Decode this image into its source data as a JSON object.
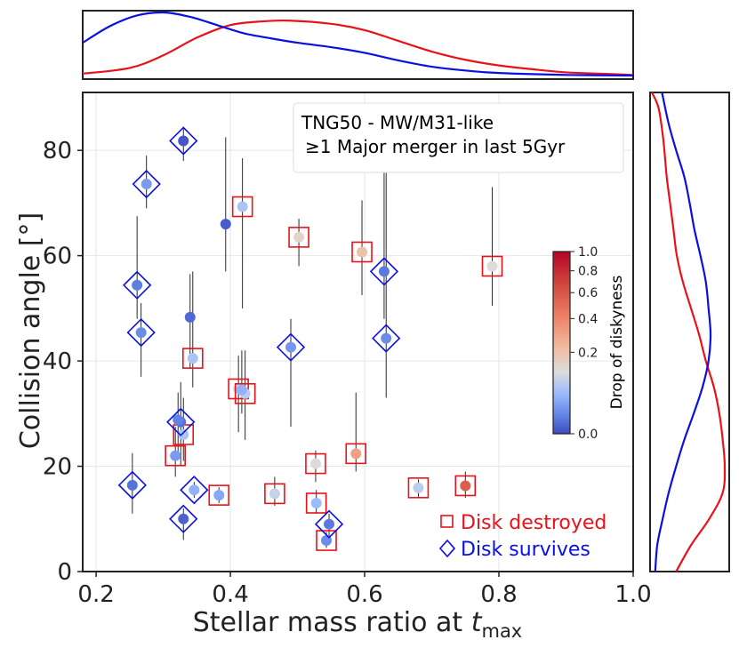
{
  "chart_data": {
    "type": "scatter",
    "title": "",
    "xlabel_main": "Stellar mass ratio at ",
    "xlabel_t": "t",
    "xlabel_sub": "max",
    "ylabel": "Collision angle [°]",
    "xlim": [
      0.18,
      1.0
    ],
    "ylim": [
      0,
      91
    ],
    "xticks": [
      0.2,
      0.4,
      0.6,
      0.8,
      1.0
    ],
    "xtick_labels": [
      "0.2",
      "0.4",
      "0.6",
      "0.8",
      "1.0"
    ],
    "yticks": [
      0,
      20,
      40,
      60,
      80
    ],
    "ytick_labels": [
      "0",
      "20",
      "40",
      "60",
      "80"
    ],
    "grid": true,
    "annotation": [
      "TNG50 - MW/M31-like",
      "≥1 Major merger in last 5Gyr"
    ],
    "legend": {
      "placement": "lower-right",
      "entries": [
        {
          "label": "Disk destroyed",
          "marker": "square",
          "color": "#e8121a"
        },
        {
          "label": "Disk survives",
          "marker": "diamond",
          "color": "#0a10e0"
        }
      ]
    },
    "colorbar": {
      "label": "Drop of diskyness",
      "ticks": [
        0.0,
        0.2,
        0.4,
        0.6,
        0.8,
        1.0
      ],
      "tick_labels": [
        "0.0",
        "0.2",
        "0.4",
        "0.6",
        "0.8",
        "1.0"
      ],
      "colormap": "coolwarm"
    },
    "series": [
      {
        "name": "Disk destroyed",
        "points": [
          {
            "x": 0.418,
            "y": 69.3,
            "drop": 0.25,
            "ylo": 50.0,
            "yhi": 78.5
          },
          {
            "x": 0.502,
            "y": 63.5,
            "drop": 0.38,
            "ylo": 58.0,
            "yhi": 67.0
          },
          {
            "x": 0.596,
            "y": 60.7,
            "drop": 0.45,
            "ylo": 52.5,
            "yhi": 70.5
          },
          {
            "x": 0.79,
            "y": 58.0,
            "drop": 0.35,
            "ylo": 50.5,
            "yhi": 73.0
          },
          {
            "x": 0.344,
            "y": 40.5,
            "drop": 0.25,
            "ylo": 35.0,
            "yhi": 57.0
          },
          {
            "x": 0.412,
            "y": 34.7,
            "drop": 0.3,
            "ylo": 26.5,
            "yhi": 41.0
          },
          {
            "x": 0.422,
            "y": 33.8,
            "drop": 0.28,
            "ylo": 25.0,
            "yhi": 42.0
          },
          {
            "x": 0.33,
            "y": 26.0,
            "drop": 0.25,
            "ylo": 21.0,
            "yhi": 33.0
          },
          {
            "x": 0.318,
            "y": 22.0,
            "drop": 0.15,
            "ylo": 18.0,
            "yhi": 27.5
          },
          {
            "x": 0.527,
            "y": 20.5,
            "drop": 0.35,
            "ylo": 17.0,
            "yhi": 23.0
          },
          {
            "x": 0.587,
            "y": 22.4,
            "drop": 0.55,
            "ylo": 19.0,
            "yhi": 34.0
          },
          {
            "x": 0.383,
            "y": 14.5,
            "drop": 0.18,
            "ylo": 13.0,
            "yhi": 16.0
          },
          {
            "x": 0.466,
            "y": 14.8,
            "drop": 0.3,
            "ylo": 12.5,
            "yhi": 18.0
          },
          {
            "x": 0.528,
            "y": 13.0,
            "drop": 0.22,
            "ylo": 11.0,
            "yhi": 15.5
          },
          {
            "x": 0.68,
            "y": 15.9,
            "drop": 0.28,
            "ylo": 14.0,
            "yhi": 17.5
          },
          {
            "x": 0.75,
            "y": 16.3,
            "drop": 0.75,
            "ylo": 14.0,
            "yhi": 19.0
          },
          {
            "x": 0.543,
            "y": 5.9,
            "drop": 0.12,
            "ylo": 4.5,
            "yhi": 7.5
          }
        ]
      },
      {
        "name": "Disk survives",
        "points": [
          {
            "x": 0.33,
            "y": 81.8,
            "drop": 0.02,
            "ylo": 78.0,
            "yhi": 84.5
          },
          {
            "x": 0.275,
            "y": 73.6,
            "drop": 0.15,
            "ylo": 69.0,
            "yhi": 79.0
          },
          {
            "x": 0.261,
            "y": 54.4,
            "drop": 0.09,
            "ylo": 48.0,
            "yhi": 67.5
          },
          {
            "x": 0.629,
            "y": 57.0,
            "drop": 0.08,
            "ylo": 48.0,
            "yhi": 76.5
          },
          {
            "x": 0.267,
            "y": 45.4,
            "drop": 0.12,
            "ylo": 37.0,
            "yhi": 51.0
          },
          {
            "x": 0.49,
            "y": 42.6,
            "drop": 0.14,
            "ylo": 27.5,
            "yhi": 48.0
          },
          {
            "x": 0.632,
            "y": 44.3,
            "drop": 0.12,
            "ylo": 33.0,
            "yhi": 76.0
          },
          {
            "x": 0.326,
            "y": 28.4,
            "drop": 0.07,
            "ylo": 20.0,
            "yhi": 36.0
          },
          {
            "x": 0.346,
            "y": 15.5,
            "drop": 0.2,
            "ylo": 14.0,
            "yhi": 17.0
          },
          {
            "x": 0.254,
            "y": 16.4,
            "drop": 0.07,
            "ylo": 11.0,
            "yhi": 22.5
          },
          {
            "x": 0.33,
            "y": 10.0,
            "drop": 0.04,
            "ylo": 6.0,
            "yhi": 12.0
          },
          {
            "x": 0.547,
            "y": 9.0,
            "drop": 0.08,
            "ylo": 6.5,
            "yhi": 11.0
          }
        ]
      },
      {
        "name": "Unmarked",
        "points": [
          {
            "x": 0.393,
            "y": 66.0,
            "drop": 0.03,
            "ylo": 57.0,
            "yhi": 82.5
          },
          {
            "x": 0.34,
            "y": 48.3,
            "drop": 0.05,
            "ylo": 38.5,
            "yhi": 56.5
          },
          {
            "x": 0.417,
            "y": 34.5,
            "drop": 0.2,
            "ylo": 30.0,
            "yhi": 42.0
          },
          {
            "x": 0.322,
            "y": 28.8,
            "drop": 0.1,
            "ylo": 22.0,
            "yhi": 34.0
          }
        ]
      }
    ],
    "kde_top": {
      "description": "marginal density of stellar mass ratio",
      "destroyed_color": "#e8121a",
      "survives_color": "#0a10e0",
      "destroyed": [
        [
          0.18,
          0.03
        ],
        [
          0.25,
          0.12
        ],
        [
          0.3,
          0.32
        ],
        [
          0.35,
          0.6
        ],
        [
          0.4,
          0.8
        ],
        [
          0.45,
          0.86
        ],
        [
          0.49,
          0.87
        ],
        [
          0.55,
          0.82
        ],
        [
          0.6,
          0.72
        ],
        [
          0.65,
          0.55
        ],
        [
          0.7,
          0.38
        ],
        [
          0.75,
          0.25
        ],
        [
          0.8,
          0.16
        ],
        [
          0.85,
          0.1
        ],
        [
          0.9,
          0.05
        ],
        [
          0.95,
          0.03
        ],
        [
          1.0,
          0.01
        ]
      ],
      "survives": [
        [
          0.18,
          0.52
        ],
        [
          0.22,
          0.78
        ],
        [
          0.26,
          0.95
        ],
        [
          0.3,
          1.0
        ],
        [
          0.34,
          0.93
        ],
        [
          0.38,
          0.8
        ],
        [
          0.42,
          0.67
        ],
        [
          0.46,
          0.59
        ],
        [
          0.5,
          0.52
        ],
        [
          0.55,
          0.45
        ],
        [
          0.6,
          0.36
        ],
        [
          0.65,
          0.24
        ],
        [
          0.7,
          0.14
        ],
        [
          0.75,
          0.08
        ],
        [
          0.8,
          0.04
        ],
        [
          0.9,
          0.01
        ],
        [
          1.0,
          0.0
        ]
      ]
    },
    "kde_right": {
      "description": "marginal density of collision angle",
      "destroyed": [
        [
          91,
          0.0
        ],
        [
          88,
          0.1
        ],
        [
          82,
          0.17
        ],
        [
          75,
          0.22
        ],
        [
          70,
          0.27
        ],
        [
          65,
          0.32
        ],
        [
          60,
          0.37
        ],
        [
          55,
          0.46
        ],
        [
          50,
          0.58
        ],
        [
          45,
          0.7
        ],
        [
          40,
          0.8
        ],
        [
          35,
          0.92
        ],
        [
          30,
          1.0
        ],
        [
          25,
          1.05
        ],
        [
          20,
          1.08
        ],
        [
          15,
          1.05
        ],
        [
          10,
          0.85
        ],
        [
          5,
          0.58
        ],
        [
          0,
          0.36
        ]
      ],
      "survives": [
        [
          91,
          0.15
        ],
        [
          85,
          0.25
        ],
        [
          80,
          0.36
        ],
        [
          75,
          0.48
        ],
        [
          70,
          0.56
        ],
        [
          65,
          0.63
        ],
        [
          60,
          0.72
        ],
        [
          55,
          0.8
        ],
        [
          50,
          0.84
        ],
        [
          45,
          0.87
        ],
        [
          40,
          0.84
        ],
        [
          35,
          0.75
        ],
        [
          30,
          0.62
        ],
        [
          25,
          0.48
        ],
        [
          20,
          0.36
        ],
        [
          15,
          0.25
        ],
        [
          10,
          0.16
        ],
        [
          5,
          0.08
        ],
        [
          0,
          0.05
        ]
      ]
    }
  }
}
